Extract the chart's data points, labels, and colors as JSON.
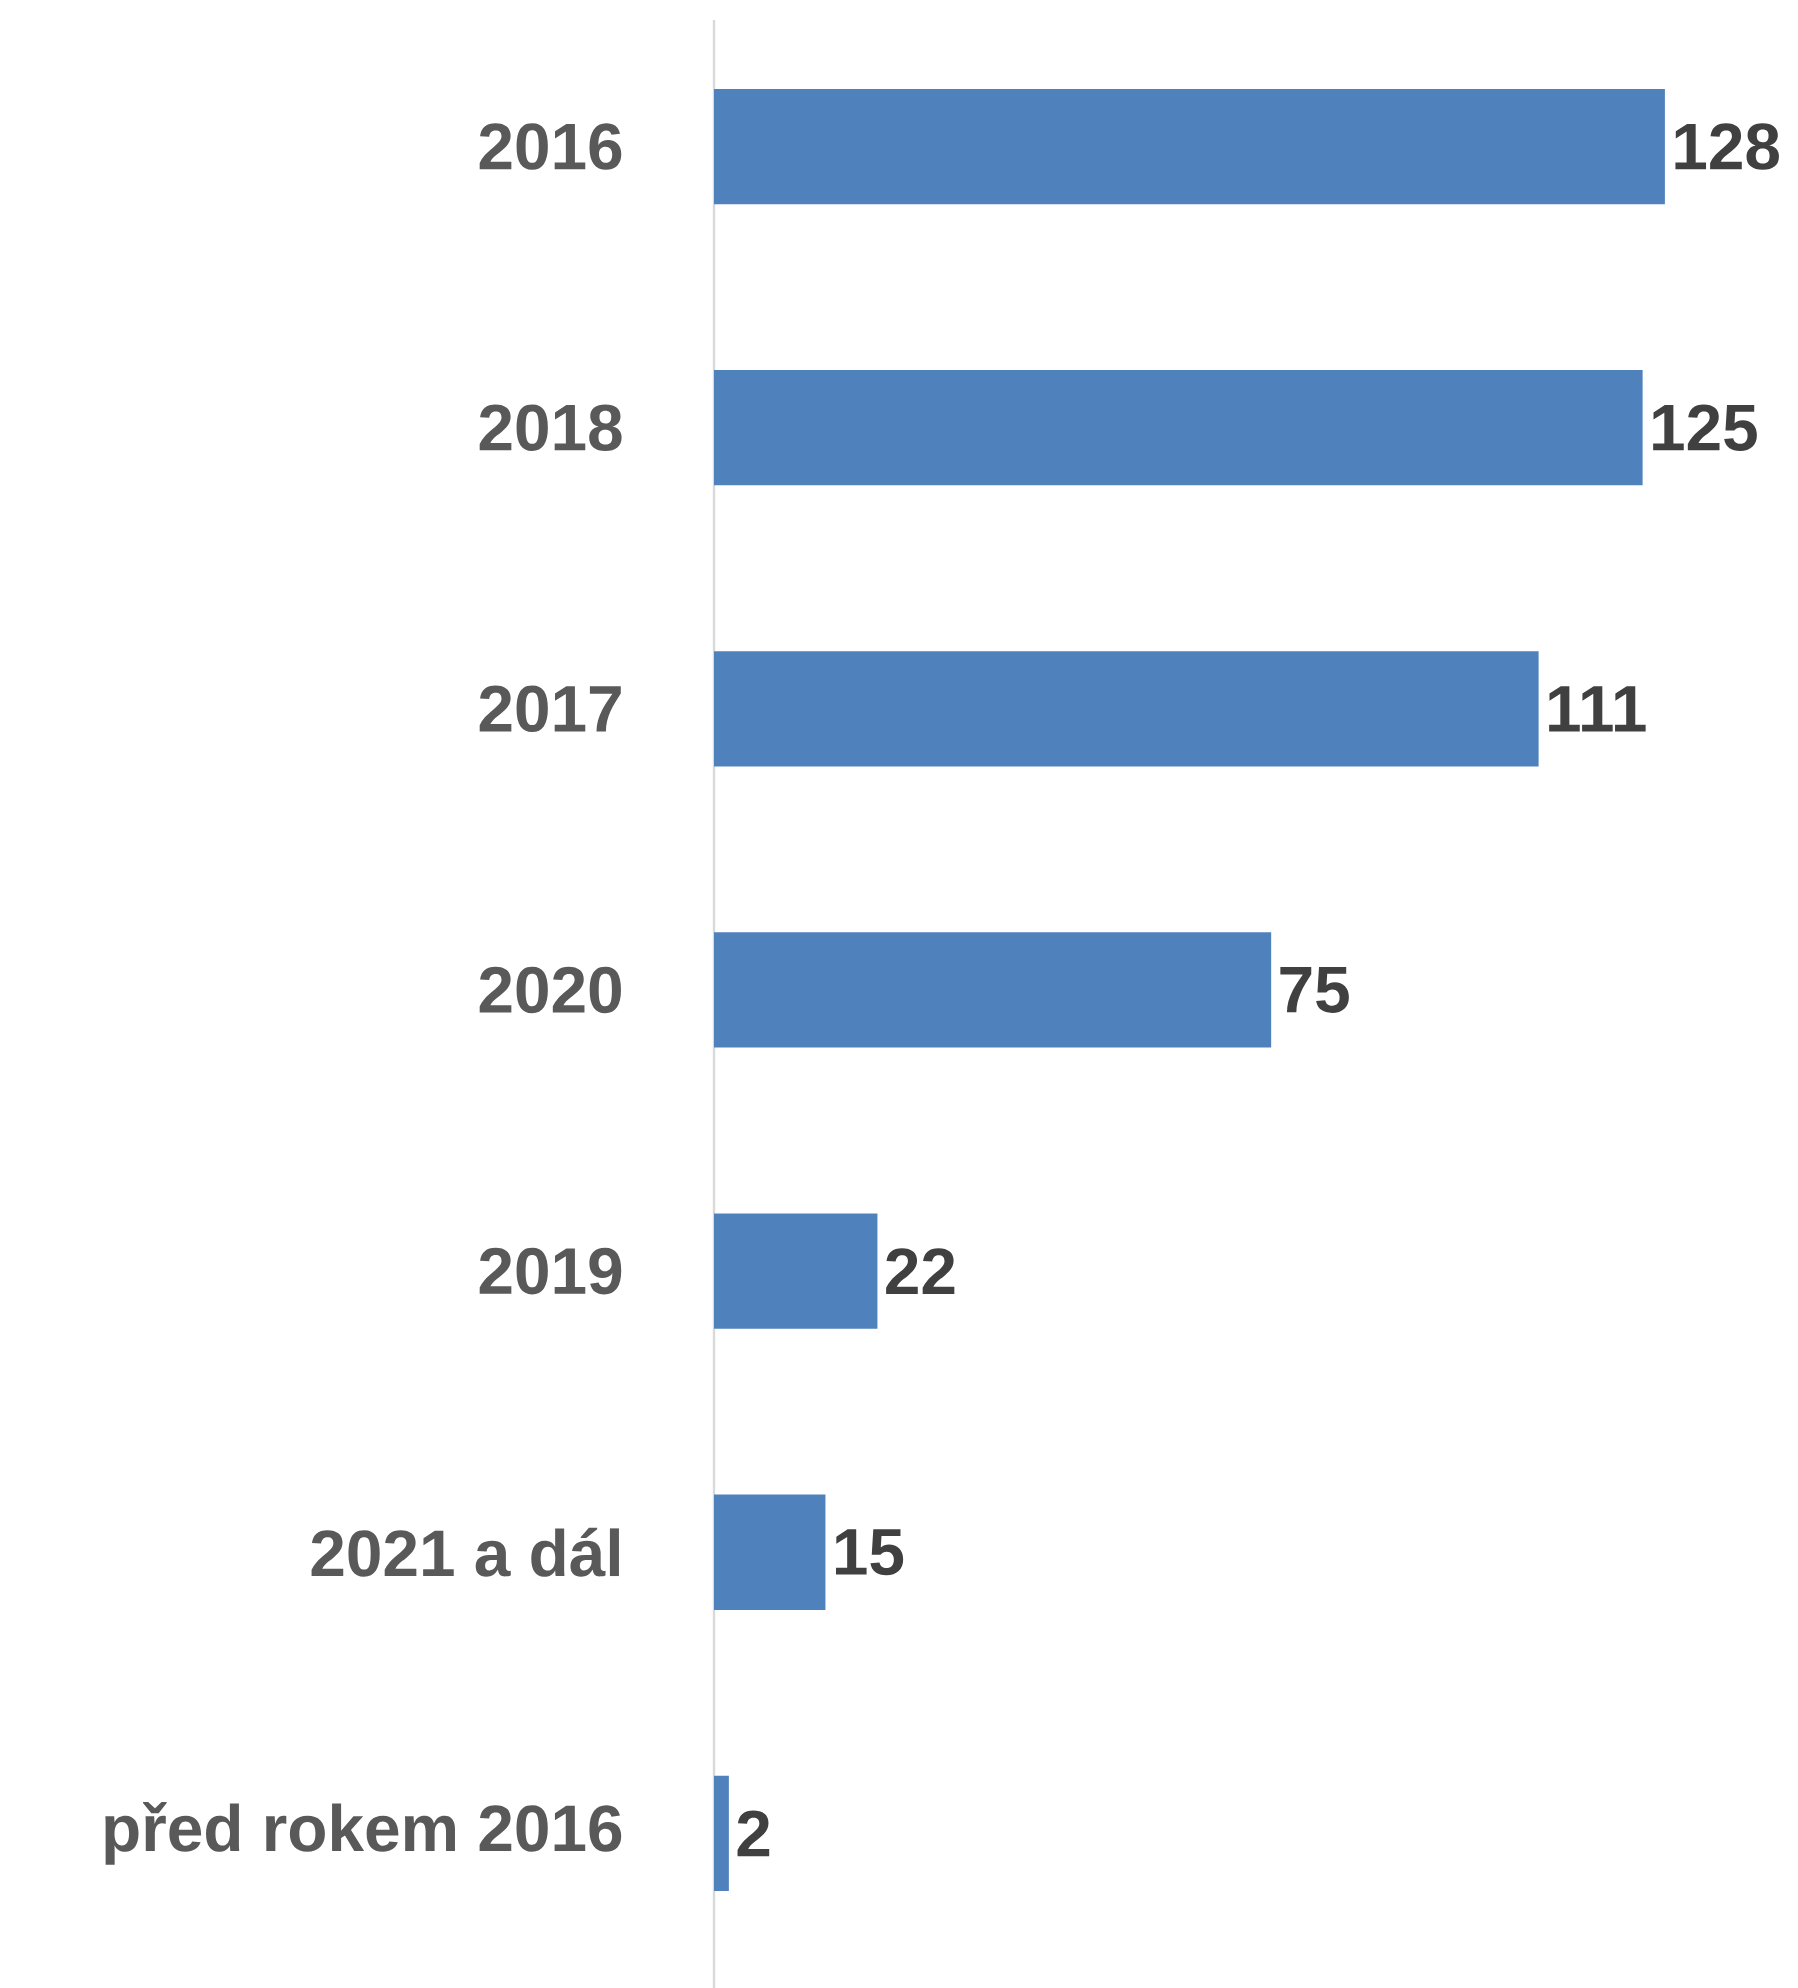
{
  "chart_data": {
    "type": "bar",
    "orientation": "horizontal",
    "categories": [
      "2016",
      "2018",
      "2017",
      "2020",
      "2019",
      "2021 a dál",
      "před rokem 2016"
    ],
    "values": [
      128,
      125,
      111,
      75,
      22,
      15,
      2
    ],
    "color": "#4f81bd",
    "data_labels": true
  }
}
